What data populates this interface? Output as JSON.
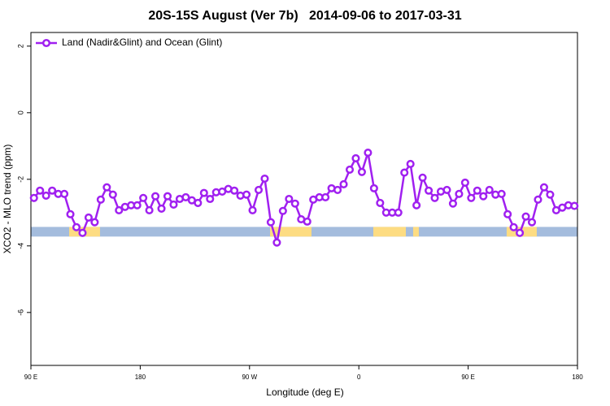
{
  "chart_data": {
    "type": "line",
    "title": "20S-15S August (Ver 7b)   2014-09-06 to 2017-03-31",
    "x_label": "Longitude (deg E)",
    "y_label": "XCO2 - MLO trend (ppm)",
    "x": [
      92.5,
      97.5,
      102.5,
      107.5,
      112.5,
      117.5,
      122.5,
      127.5,
      132.5,
      137.5,
      142.5,
      147.5,
      152.5,
      157.5,
      162.5,
      167.5,
      172.5,
      177.5,
      182.5,
      187.5,
      192.5,
      197.5,
      202.5,
      207.5,
      212.5,
      217.5,
      222.5,
      227.5,
      232.5,
      237.5,
      242.5,
      247.5,
      252.5,
      257.5,
      262.5,
      267.5,
      272.5,
      277.5,
      282.5,
      287.5,
      292.5,
      297.5,
      302.5,
      307.5,
      312.5,
      317.5,
      322.5,
      327.5,
      332.5,
      337.5,
      342.5,
      347.5,
      352.5,
      357.5,
      362.5,
      367.5,
      372.5,
      377.5,
      382.5,
      387.5,
      392.5,
      397.5,
      402.5,
      407.5,
      412.5,
      417.5,
      422.5,
      427.5,
      432.5,
      437.5,
      442.5,
      447.5,
      452.5,
      457.5,
      462.5,
      467.5,
      472.5,
      477.5,
      482.5,
      487.5,
      492.5,
      497.5,
      502.5,
      507.5,
      512.5,
      517.5,
      522.5,
      527.5,
      532.5,
      537.5
    ],
    "series": [
      {
        "name": "Land (Nadir&Glint) and Ocean (Glint)",
        "color": "#a020f0",
        "values": [
          -2.56,
          -2.34,
          -2.49,
          -2.34,
          -2.44,
          -2.44,
          -3.05,
          -3.44,
          -3.61,
          -3.15,
          -3.29,
          -2.61,
          -2.24,
          -2.46,
          -2.93,
          -2.83,
          -2.78,
          -2.78,
          -2.56,
          -2.93,
          -2.51,
          -2.88,
          -2.51,
          -2.76,
          -2.59,
          -2.54,
          -2.63,
          -2.71,
          -2.41,
          -2.59,
          -2.39,
          -2.37,
          -2.29,
          -2.34,
          -2.49,
          -2.46,
          -2.93,
          -2.32,
          -1.98,
          -3.29,
          -3.9,
          -2.95,
          -2.59,
          -2.73,
          -3.2,
          -3.27,
          -2.61,
          -2.54,
          -2.54,
          -2.27,
          -2.32,
          -2.15,
          -1.71,
          -1.37,
          -1.78,
          -1.2,
          -2.27,
          -2.71,
          -3.0,
          -3.0,
          -3.0,
          -1.8,
          -1.54,
          -2.78,
          -1.95,
          -2.34,
          -2.56,
          -2.37,
          -2.32,
          -2.73,
          -2.44,
          -2.1,
          -2.56,
          -2.34,
          -2.51,
          -2.32,
          -2.46,
          -2.44,
          -3.05,
          -3.44,
          -3.61,
          -3.12,
          -3.29,
          -2.61,
          -2.24,
          -2.46,
          -2.93,
          -2.85,
          -2.78,
          -2.8
        ]
      }
    ],
    "surface_band": {
      "ylim": [
        -3.72,
        -3.43
      ],
      "ocean_color": "#a4bcdd",
      "land_color": "#fddc82",
      "land_ranges": [
        [
          121.5,
          146.9
        ],
        [
          286.9,
          321.0
        ],
        [
          371.9,
          398.7
        ],
        [
          404.7,
          409.4
        ],
        [
          481.7,
          506.5
        ]
      ]
    },
    "xlim": [
      90,
      540
    ],
    "xticks": [
      {
        "value": 90,
        "label": "90 E"
      },
      180,
      {
        "value": 270,
        "label": "90 W"
      },
      {
        "value": 360,
        "label": "0"
      },
      {
        "value": 450,
        "label": "90 E"
      },
      {
        "value": 540,
        "label": "180"
      }
    ],
    "ylim": [
      -7.59,
      2.41
    ],
    "yticks": [
      2,
      0,
      -2,
      -4,
      -6
    ],
    "legend": "top-left"
  }
}
